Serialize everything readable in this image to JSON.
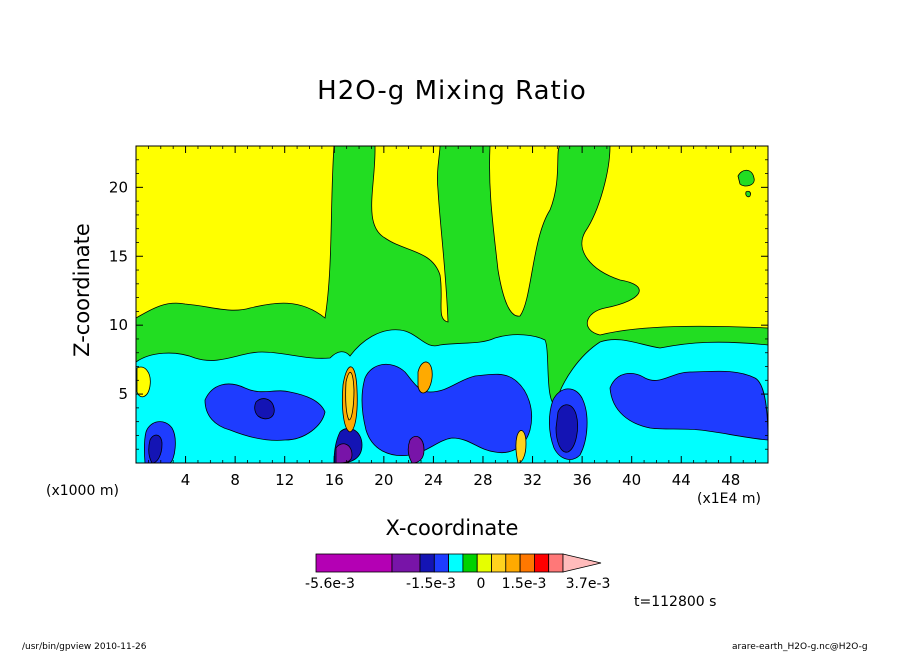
{
  "title": "H2O-g Mixing Ratio",
  "footer": {
    "left": "/usr/bin/gpview  2010-11-26",
    "right": "arare-earth_H2O-g.nc@H2O-g"
  },
  "time_label": "t=112800 s",
  "chart_data": {
    "type": "heatmap",
    "title": "H2O-g Mixing Ratio",
    "xlabel": "X-coordinate",
    "ylabel": "Z-coordinate",
    "x_unit_left": "(x1000 m)",
    "x_unit_right": "(x1E4 m)",
    "xlim": [
      0,
      51
    ],
    "ylim": [
      0,
      23
    ],
    "x_ticks": [
      4,
      8,
      12,
      16,
      20,
      24,
      28,
      32,
      36,
      40,
      44,
      48
    ],
    "y_ticks": [
      5,
      10,
      15,
      20
    ],
    "contour_fill": true,
    "colorbar": {
      "levels": [
        "-5.6e-3",
        "-1.5e-3",
        "0",
        "1.5e-3",
        "3.7e-3"
      ],
      "colors": [
        "#b400b4",
        "#7814a8",
        "#1414b4",
        "#1e3cff",
        "#00ffff",
        "#00d200",
        "#e6ff00",
        "#ffd21e",
        "#ffaa00",
        "#ff7800",
        "#ff0000",
        "#ff7878"
      ],
      "overflow_color": "#ffbbbb"
    },
    "regions": [
      {
        "name": "upper-yellow",
        "color": "#ffff00"
      },
      {
        "name": "green-band",
        "color": "#22dd22"
      },
      {
        "name": "cyan-band",
        "color": "#00ffff"
      },
      {
        "name": "blue-pockets",
        "color": "#1e3cff"
      },
      {
        "name": "dark-blue-cores",
        "color": "#1414b4"
      },
      {
        "name": "purple-cores",
        "color": "#7814a8"
      },
      {
        "name": "orange-spots",
        "color": "#ffaa00"
      }
    ]
  }
}
